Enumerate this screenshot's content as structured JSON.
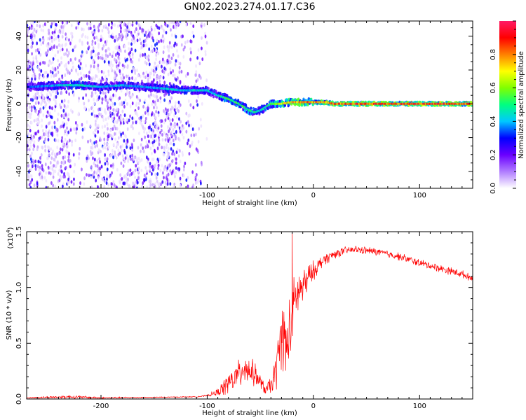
{
  "title": "GN02.2023.274.01.17.C36",
  "chart_data": [
    {
      "type": "heatmap",
      "xlabel": "Height of straight line (km)",
      "ylabel": "Frequency (Hz)",
      "xlim": [
        -270,
        150
      ],
      "ylim": [
        -50,
        49
      ],
      "x_ticks": [
        -200,
        -100,
        0,
        100
      ],
      "y_ticks": [
        -40,
        -20,
        0,
        20,
        40
      ],
      "colorbar": {
        "label": "Normalized spectral amplitude",
        "range": [
          0,
          1
        ],
        "ticks": [
          "0.0",
          "0.2",
          "0.4",
          "0.6",
          "0.8"
        ],
        "colors": [
          "#ffffff",
          "#b07cff",
          "#6a00ff",
          "#0000ff",
          "#00c8ff",
          "#00ff80",
          "#80ff00",
          "#ffff00",
          "#ff8000",
          "#ff0000",
          "#ff1a66"
        ]
      },
      "ridge": {
        "x": [
          -265,
          -240,
          -220,
          -200,
          -180,
          -160,
          -140,
          -125,
          -110,
          -100,
          -90,
          -80,
          -70,
          -60,
          -55,
          -50,
          -40,
          -30,
          -20,
          -10,
          0,
          10,
          20,
          40,
          60,
          80,
          100,
          120,
          150
        ],
        "freq": [
          10,
          11,
          11,
          10,
          11,
          10,
          9,
          8,
          8,
          8,
          5,
          3,
          0,
          -4,
          -5,
          -4,
          0,
          0,
          1,
          1,
          1,
          1,
          0,
          0,
          0,
          0,
          0,
          0,
          0
        ],
        "amplitude": [
          0.35,
          0.45,
          0.5,
          0.4,
          0.45,
          0.4,
          0.45,
          0.45,
          0.45,
          0.45,
          0.5,
          0.55,
          0.55,
          0.55,
          0.5,
          0.45,
          0.6,
          0.7,
          0.8,
          0.85,
          0.85,
          0.85,
          0.9,
          0.92,
          0.93,
          0.93,
          0.93,
          0.93,
          0.93
        ]
      },
      "noise_region_x": [
        -270,
        -100
      ]
    },
    {
      "type": "line",
      "xlabel": "Height of straight line (km)",
      "ylabel": "SNR (10 * v/v)",
      "y_multiplier": "(x10",
      "y_multiplier_exp": "4",
      "xlim": [
        -270,
        150
      ],
      "ylim": [
        0,
        1.5
      ],
      "x_ticks": [
        -200,
        -100,
        0,
        100
      ],
      "y_tick_labels": [
        "0.0",
        "0.5",
        "1.0",
        "1.5"
      ],
      "color": "#ff0000",
      "series": [
        {
          "x": [
            -270,
            -230,
            -200,
            -150,
            -110,
            -100,
            -90,
            -80,
            -70,
            -65,
            -60,
            -55,
            -50,
            -45,
            -40,
            -35,
            -30,
            -25,
            -20,
            -15,
            -10,
            -5,
            0,
            10,
            20,
            30,
            40,
            50,
            60,
            80,
            100,
            120,
            140,
            150
          ],
          "y": [
            0.01,
            0.02,
            0.01,
            0.015,
            0.02,
            0.03,
            0.06,
            0.14,
            0.22,
            0.3,
            0.25,
            0.22,
            0.15,
            0.08,
            0.12,
            0.25,
            0.6,
            0.45,
            0.75,
            0.95,
            1.0,
            1.08,
            1.15,
            1.25,
            1.3,
            1.33,
            1.34,
            1.33,
            1.32,
            1.28,
            1.22,
            1.17,
            1.12,
            1.08
          ],
          "spread": [
            0.005,
            0.02,
            0.01,
            0.005,
            0.005,
            0.01,
            0.04,
            0.12,
            0.15,
            0.2,
            0.15,
            0.12,
            0.08,
            0.05,
            0.1,
            0.2,
            0.35,
            0.4,
            0.35,
            0.25,
            0.2,
            0.15,
            0.1,
            0.06,
            0.05,
            0.04,
            0.04,
            0.04,
            0.04,
            0.04,
            0.04,
            0.04,
            0.04,
            0.03
          ]
        }
      ],
      "spike": {
        "x": -20,
        "y": 1.5
      }
    }
  ]
}
